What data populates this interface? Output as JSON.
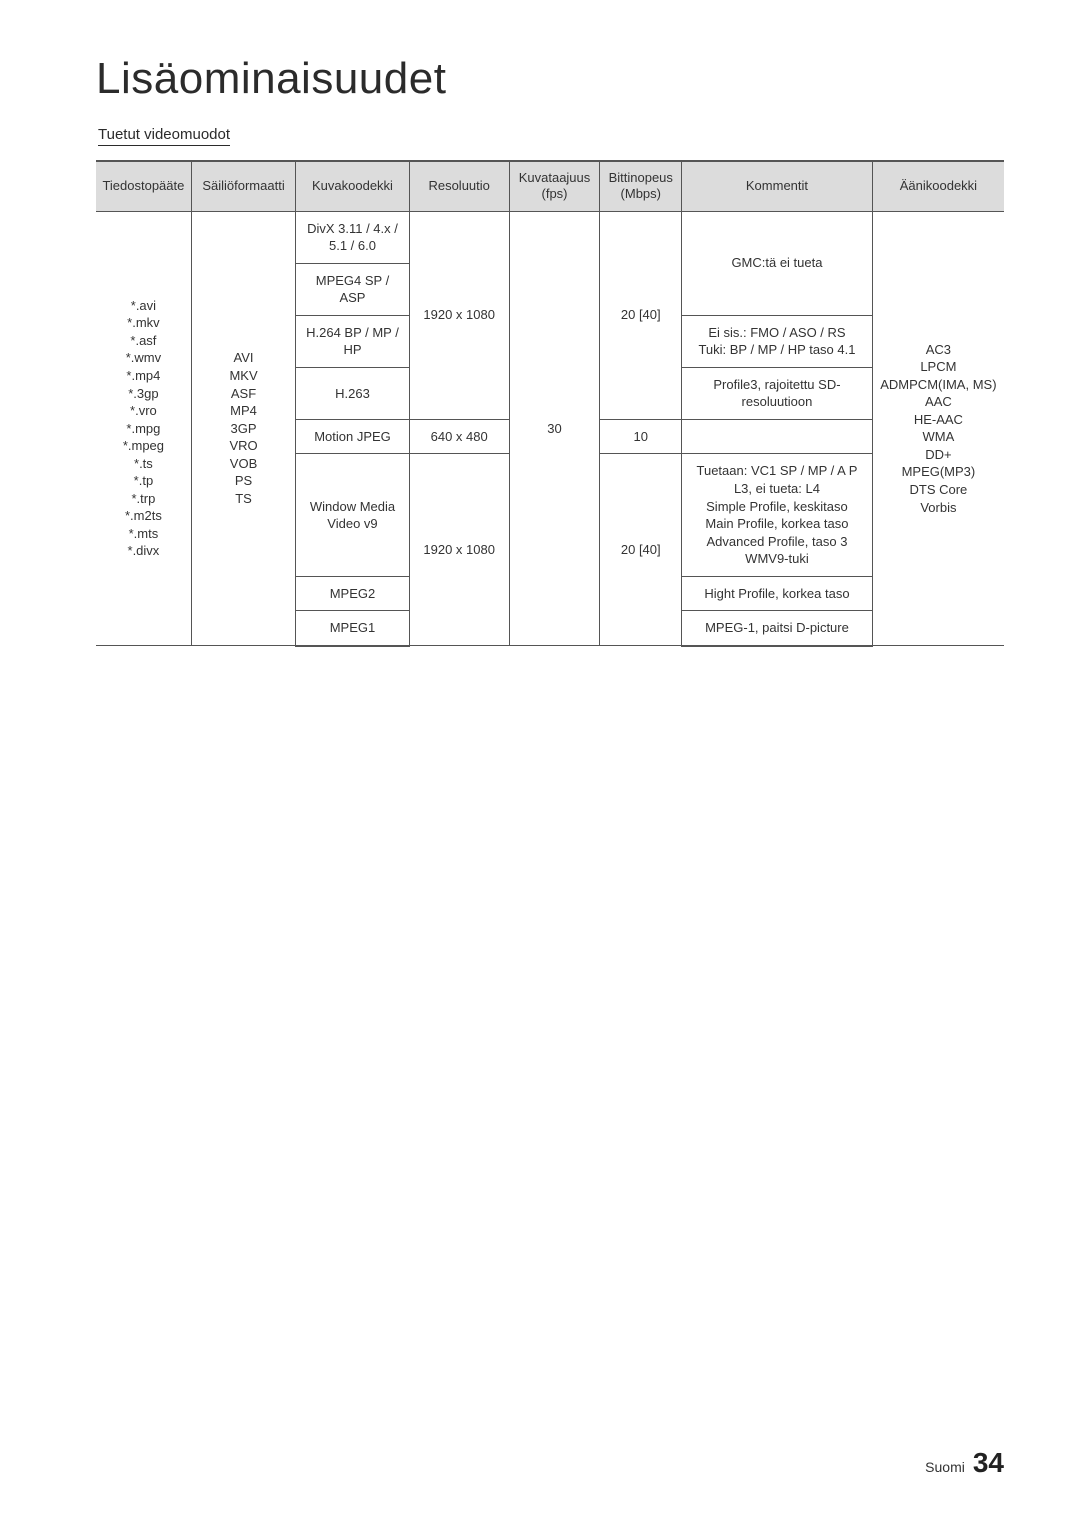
{
  "page": {
    "title": "Lisäominaisuudet",
    "sub_title": "Tuetut videomuodot",
    "footer_lang": "Suomi",
    "footer_page": "34"
  },
  "table": {
    "headers": {
      "ext": "Tiedostopääte",
      "container": "Säiliöformaatti",
      "vcodec": "Kuvakoodekki",
      "resolution": "Resoluutio",
      "fps": "Kuvataajuus (fps)",
      "bitrate": "Bittinopeus (Mbps)",
      "comment": "Kommentit",
      "acodec": "Äänikoodekki"
    },
    "cells": {
      "ext_list": "*.avi\n*.mkv\n*.asf\n*.wmv\n*.mp4\n*.3gp\n*.vro\n*.mpg\n*.mpeg\n*.ts\n*.tp\n*.trp\n*.m2ts\n*.mts\n*.divx",
      "container_list": "AVI\nMKV\nASF\nMP4\n3GP\nVRO\nVOB\nPS\nTS",
      "vcodec_divx": "DivX 3.11 / 4.x / 5.1 / 6.0",
      "vcodec_mpeg4sp": "MPEG4 SP / ASP",
      "vcodec_h264": "H.264 BP / MP / HP",
      "vcodec_h263": "H.263",
      "vcodec_mjpeg": "Motion JPEG",
      "vcodec_wmv": "Window Media Video v9",
      "vcodec_mpeg2": "MPEG2",
      "vcodec_mpeg1": "MPEG1",
      "res_1920": "1920 x 1080",
      "res_640": "640 x 480",
      "res_1920b": "1920 x 1080",
      "fps_30": "30",
      "bitrate_20a": "20 [40]",
      "bitrate_10": "10",
      "bitrate_20b": "20 [40]",
      "comment_gmc": "GMC:tä ei tueta",
      "comment_264": "Ei sis.: FMO / ASO / RS\nTuki: BP / MP / HP taso 4.1",
      "comment_263": "Profile3, rajoitettu SD-resoluutioon",
      "comment_mjpeg": "",
      "comment_wmv": "Tuetaan: VC1 SP / MP / A P L3, ei tueta: L4\nSimple Profile, keskitaso\nMain Profile, korkea taso\nAdvanced Profile, taso 3\nWMV9-tuki",
      "comment_mpeg2": "Hight Profile, korkea taso",
      "comment_mpeg1": "MPEG-1, paitsi D-picture",
      "acodec_list": "AC3\nLPCM\nADMPCM(IMA, MS)\nAAC\nHE-AAC\nWMA\nDD+\nMPEG(MP3)\nDTS Core\nVorbis"
    }
  }
}
